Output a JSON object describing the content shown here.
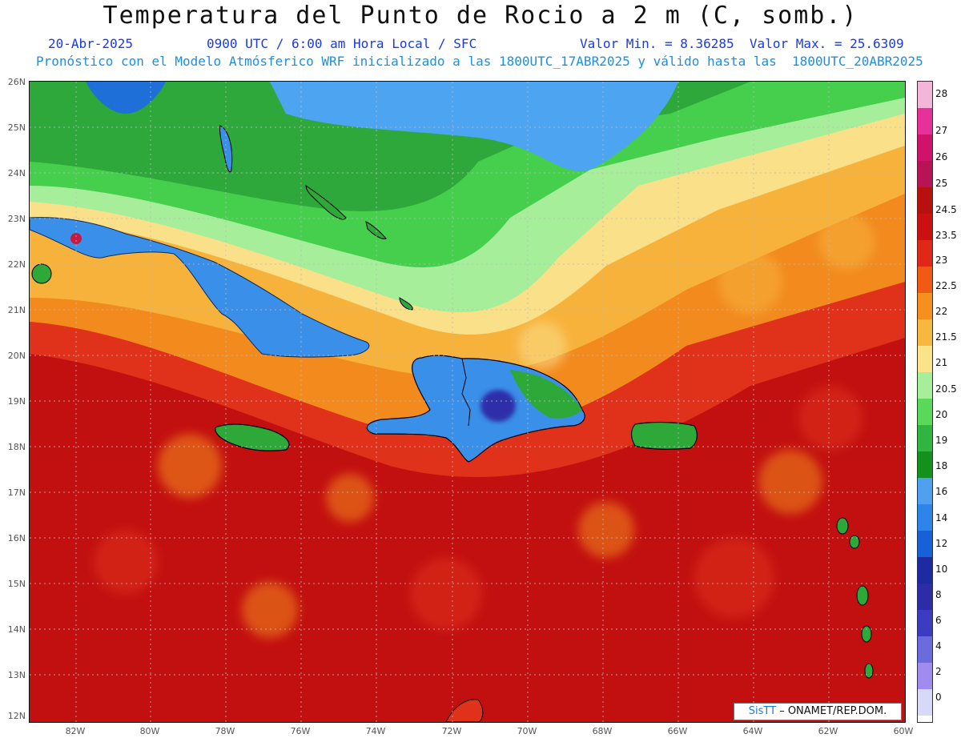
{
  "header": {
    "title": "Temperatura del Punto de Rocio a 2 m (C, somb.)",
    "date": "20-Abr-2025",
    "time": "0900 UTC / 6:00 am Hora Local / SFC",
    "value_range": "Valor Min. = 8.36285  Valor Max. = 25.6309",
    "model_info": "Pronóstico con el Modelo Atmósferico WRF inicializado a las 1800UTC_17ABR2025 y válido hasta las  1800UTC_20ABR2025"
  },
  "map": {
    "latitude_labels": [
      "26N",
      "25N",
      "24N",
      "23N",
      "22N",
      "21N",
      "20N",
      "19N",
      "18N",
      "17N",
      "16N",
      "15N",
      "14N",
      "13N",
      "12N"
    ],
    "longitude_labels": [
      "82W",
      "80W",
      "78W",
      "76W",
      "74W",
      "72W",
      "70W",
      "68W",
      "66W",
      "64W",
      "62W",
      "60W"
    ],
    "regions": [
      {
        "name": "cuba",
        "fill": "#3a8fe8"
      },
      {
        "name": "hispaniola",
        "fill": "#3a8fe8"
      },
      {
        "name": "jamaica",
        "fill": "#2fa83a"
      },
      {
        "name": "puerto-rico",
        "fill": "#2fa83a"
      }
    ]
  },
  "legend": {
    "labels": [
      "28",
      "27",
      "26",
      "25",
      "24.5",
      "23.5",
      "23",
      "22.5",
      "22",
      "21.5",
      "21",
      "20.5",
      "20",
      "19",
      "18",
      "16",
      "14",
      "12",
      "10",
      "8",
      "6",
      "4",
      "2",
      "0"
    ],
    "colors": [
      "#f4b6d8",
      "#e8309a",
      "#d0136a",
      "#b81454",
      "#b80f0f",
      "#cc1010",
      "#e02818",
      "#f05a14",
      "#f5901e",
      "#f7b840",
      "#fbe38a",
      "#a6ee9a",
      "#5ad85a",
      "#30b540",
      "#14901c",
      "#4fa0f0",
      "#2f84ea",
      "#1660d8",
      "#1e2aa0",
      "#2c2ca8",
      "#3c3cc0",
      "#6b6bde",
      "#a08cf0",
      "#ffffff"
    ]
  },
  "credit": {
    "brand": "SisTT",
    "text": " – ONAMET/REP.DOM."
  }
}
